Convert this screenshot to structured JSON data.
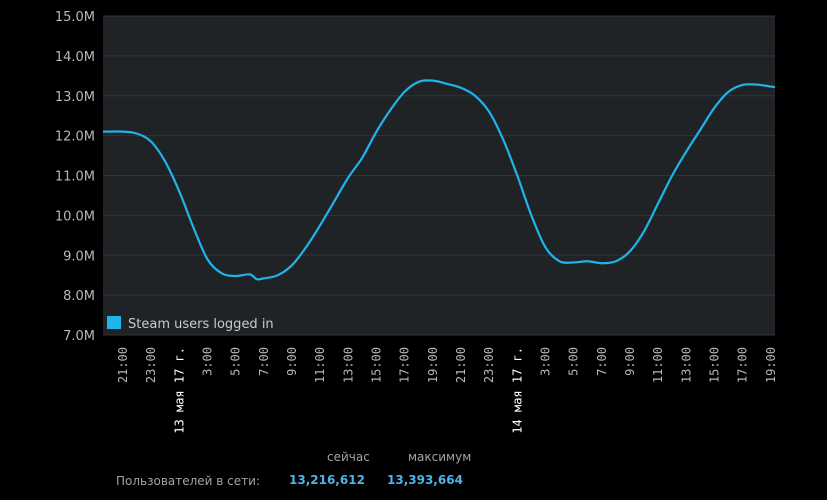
{
  "chart_data": {
    "type": "line",
    "title": "",
    "xlabel": "",
    "ylabel": "",
    "ylim": [
      7000000,
      15000000
    ],
    "y_ticks": [
      "7.0M",
      "8.0M",
      "9.0M",
      "10.0M",
      "11.0M",
      "12.0M",
      "13.0M",
      "14.0M",
      "15.0M"
    ],
    "x_ticks": [
      {
        "t": "2017-05-12 21:00",
        "label": "21:00"
      },
      {
        "t": "2017-05-12 23:00",
        "label": "23:00"
      },
      {
        "t": "2017-05-13 01:00",
        "label": "13 мая 17 г.",
        "date": true
      },
      {
        "t": "2017-05-13 03:00",
        "label": "3:00"
      },
      {
        "t": "2017-05-13 05:00",
        "label": "5:00"
      },
      {
        "t": "2017-05-13 07:00",
        "label": "7:00"
      },
      {
        "t": "2017-05-13 09:00",
        "label": "9:00"
      },
      {
        "t": "2017-05-13 11:00",
        "label": "11:00"
      },
      {
        "t": "2017-05-13 13:00",
        "label": "13:00"
      },
      {
        "t": "2017-05-13 15:00",
        "label": "15:00"
      },
      {
        "t": "2017-05-13 17:00",
        "label": "17:00"
      },
      {
        "t": "2017-05-13 19:00",
        "label": "19:00"
      },
      {
        "t": "2017-05-13 21:00",
        "label": "21:00"
      },
      {
        "t": "2017-05-13 23:00",
        "label": "23:00"
      },
      {
        "t": "2017-05-14 01:00",
        "label": "14 мая 17 г.",
        "date": true
      },
      {
        "t": "2017-05-14 03:00",
        "label": "3:00"
      },
      {
        "t": "2017-05-14 05:00",
        "label": "5:00"
      },
      {
        "t": "2017-05-14 07:00",
        "label": "7:00"
      },
      {
        "t": "2017-05-14 09:00",
        "label": "9:00"
      },
      {
        "t": "2017-05-14 11:00",
        "label": "11:00"
      },
      {
        "t": "2017-05-14 13:00",
        "label": "13:00"
      },
      {
        "t": "2017-05-14 15:00",
        "label": "15:00"
      },
      {
        "t": "2017-05-14 17:00",
        "label": "17:00"
      },
      {
        "t": "2017-05-14 19:00",
        "label": "19:00"
      }
    ],
    "xlim": [
      "2017-05-12 19:35",
      "2017-05-14 19:18"
    ],
    "grid": true,
    "legend_position": "bottom-left",
    "series": [
      {
        "name": "Steam users logged in",
        "color": "#1fb4ea",
        "x": [
          "2017-05-12 19:35",
          "2017-05-12 20:00",
          "2017-05-12 21:00",
          "2017-05-12 22:00",
          "2017-05-12 23:00",
          "2017-05-13 00:00",
          "2017-05-13 01:00",
          "2017-05-13 02:00",
          "2017-05-13 03:00",
          "2017-05-13 04:00",
          "2017-05-13 05:00",
          "2017-05-13 06:00",
          "2017-05-13 06:30",
          "2017-05-13 07:00",
          "2017-05-13 08:00",
          "2017-05-13 09:00",
          "2017-05-13 10:00",
          "2017-05-13 11:00",
          "2017-05-13 12:00",
          "2017-05-13 13:00",
          "2017-05-13 14:00",
          "2017-05-13 15:00",
          "2017-05-13 16:00",
          "2017-05-13 17:00",
          "2017-05-13 18:00",
          "2017-05-13 19:00",
          "2017-05-13 20:00",
          "2017-05-13 21:00",
          "2017-05-13 22:00",
          "2017-05-13 23:00",
          "2017-05-14 00:00",
          "2017-05-14 01:00",
          "2017-05-14 02:00",
          "2017-05-14 03:00",
          "2017-05-14 04:00",
          "2017-05-14 05:00",
          "2017-05-14 06:00",
          "2017-05-14 07:00",
          "2017-05-14 08:00",
          "2017-05-14 09:00",
          "2017-05-14 10:00",
          "2017-05-14 11:00",
          "2017-05-14 12:00",
          "2017-05-14 13:00",
          "2017-05-14 14:00",
          "2017-05-14 15:00",
          "2017-05-14 16:00",
          "2017-05-14 17:00",
          "2017-05-14 18:00",
          "2017-05-14 19:00",
          "2017-05-14 19:18"
        ],
        "values": [
          12100000,
          12100000,
          12100000,
          12050000,
          11850000,
          11350000,
          10600000,
          9700000,
          8900000,
          8550000,
          8480000,
          8520000,
          8400000,
          8420000,
          8500000,
          8750000,
          9200000,
          9750000,
          10350000,
          10950000,
          11450000,
          12100000,
          12650000,
          13100000,
          13350000,
          13380000,
          13300000,
          13200000,
          13000000,
          12600000,
          11900000,
          11000000,
          10000000,
          9200000,
          8850000,
          8820000,
          8850000,
          8800000,
          8850000,
          9100000,
          9600000,
          10300000,
          11000000,
          11600000,
          12150000,
          12700000,
          13100000,
          13270000,
          13280000,
          13230000,
          13216612
        ]
      }
    ]
  },
  "stats": {
    "col_now": "сейчас",
    "col_max": "максимум",
    "row_label": "Пользователей в сети:",
    "now": "13,216,612",
    "max": "13,393,664",
    "value_color": "#4eb4e8"
  }
}
